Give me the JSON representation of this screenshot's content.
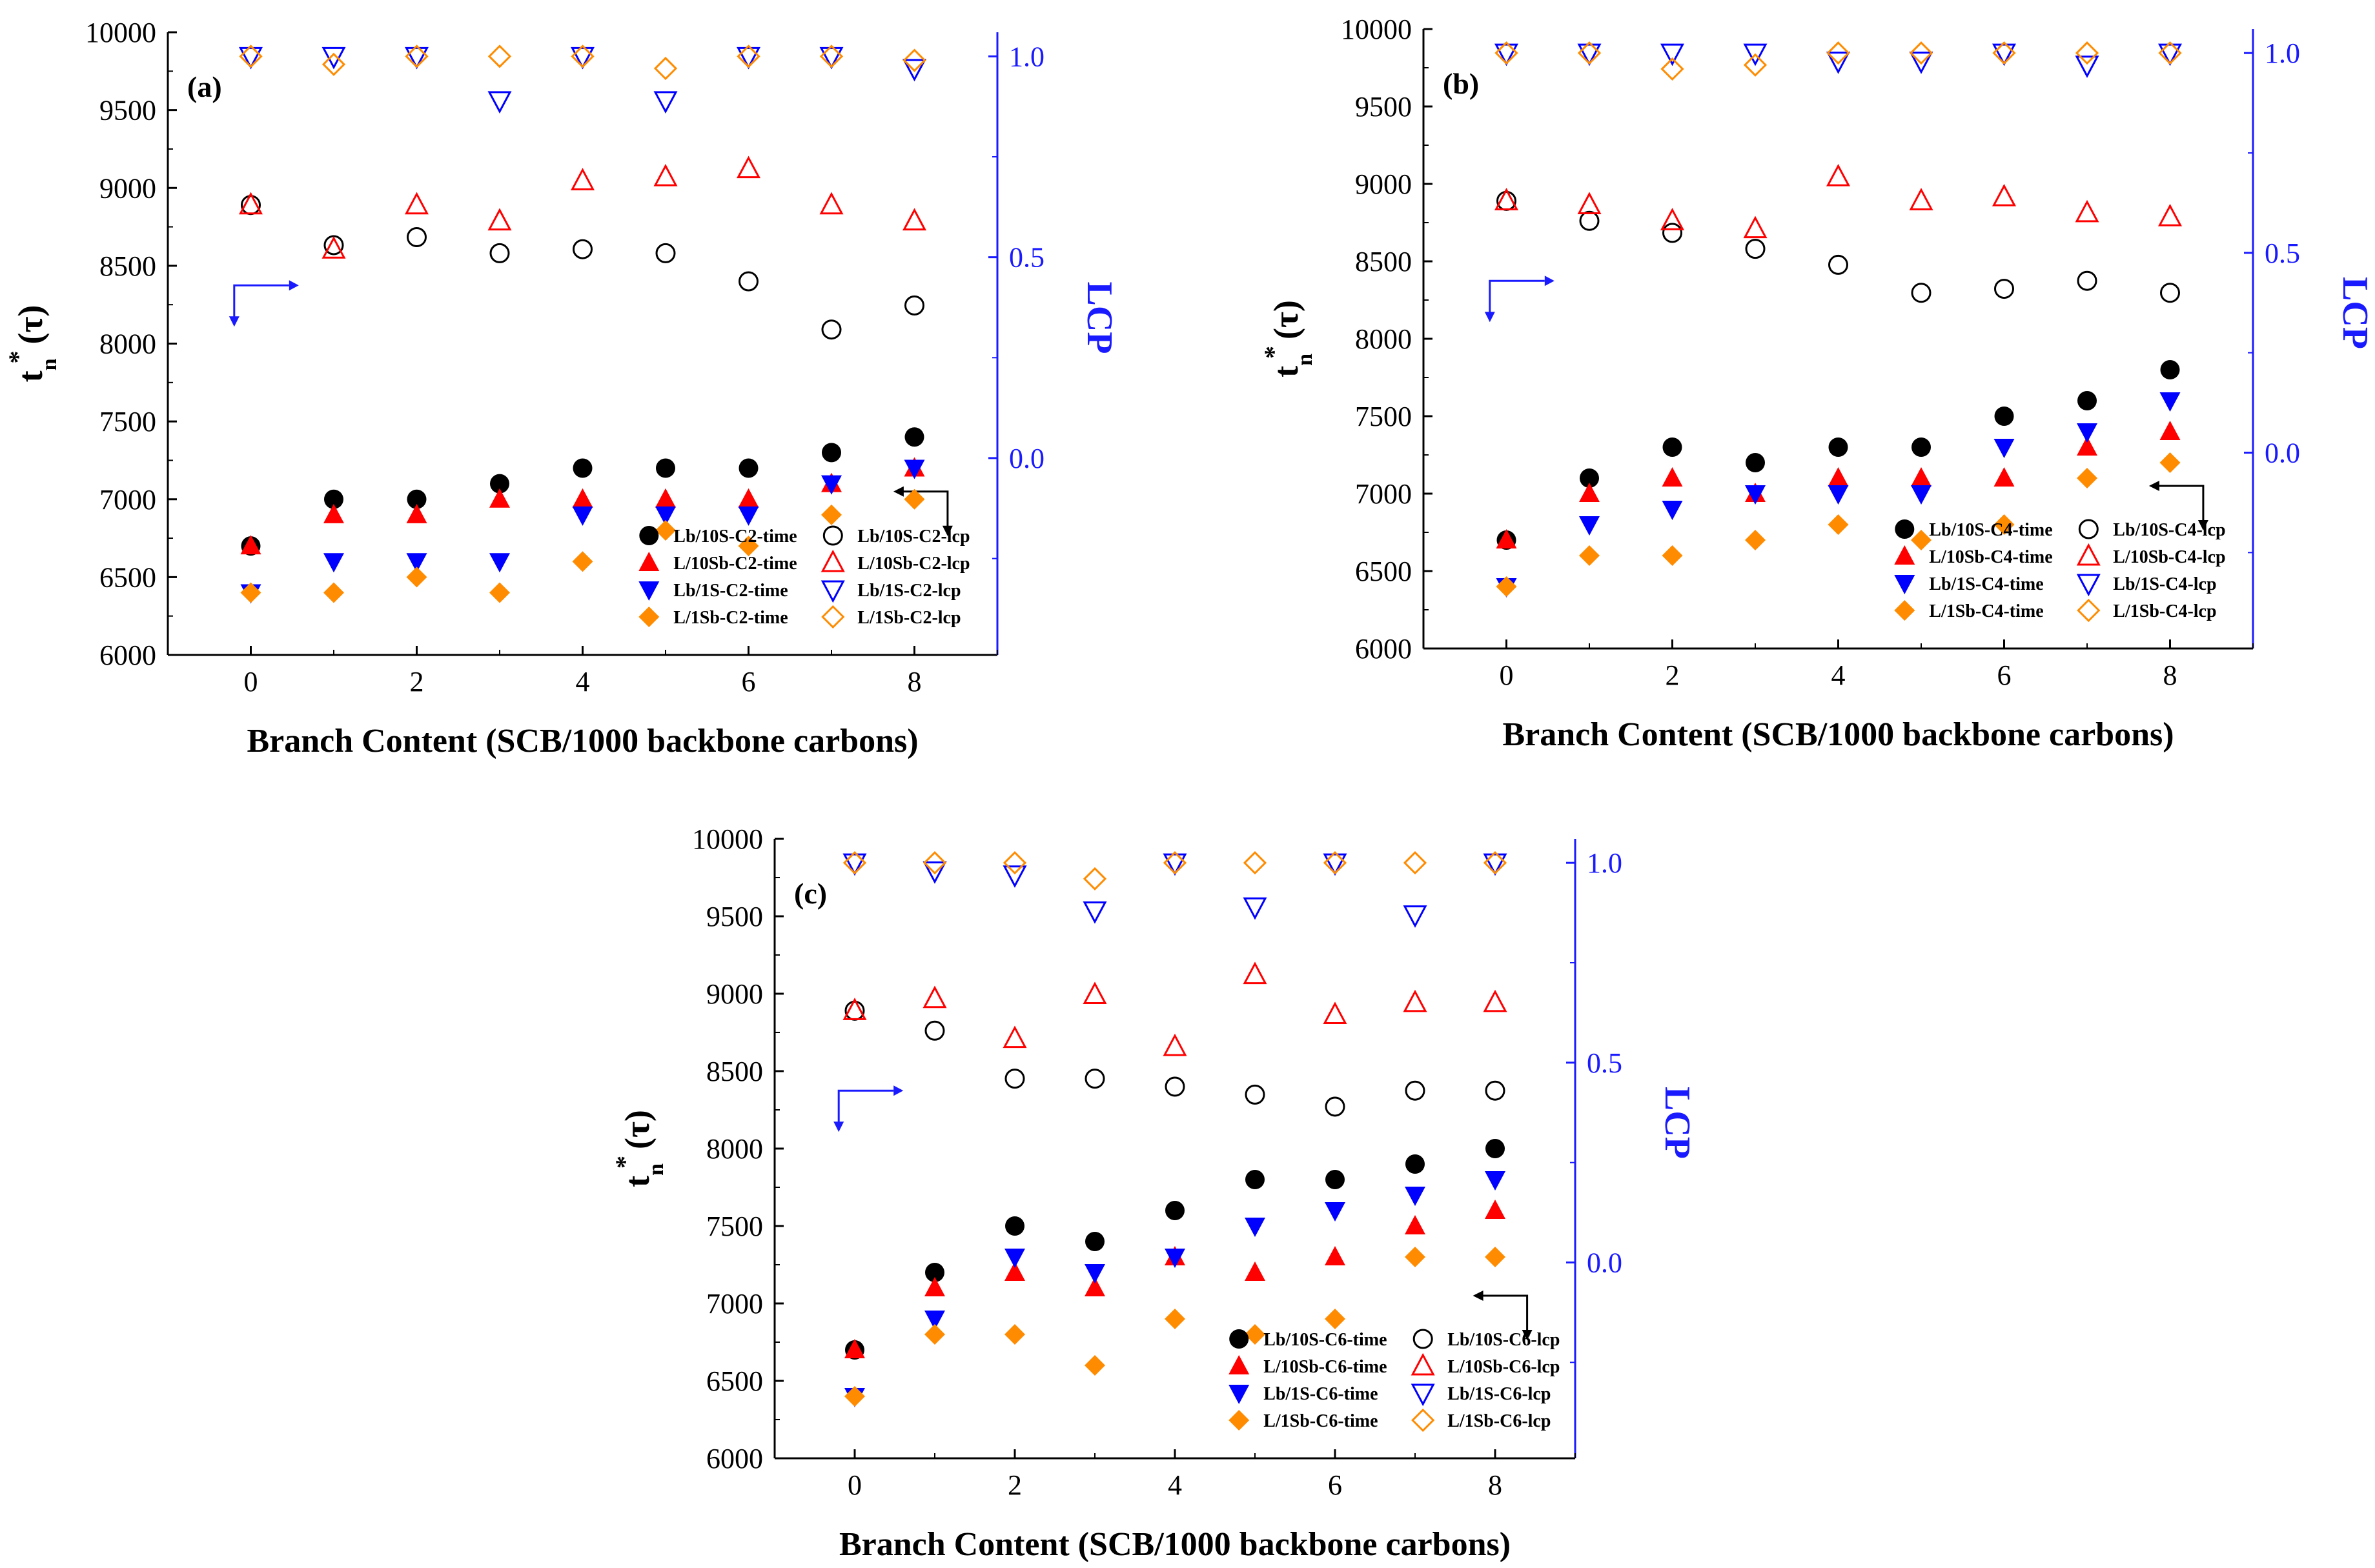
{
  "colors": {
    "time_lb10": "#000000",
    "time_l10": "#ff0000",
    "time_lb1": "#0000ff",
    "time_l1": "#ff8c00",
    "right_axis": "#1a1aff"
  },
  "chart_data": [
    {
      "type": "scatter",
      "panel": "(a)",
      "xlabel": "Branch Content (SCB/1000 backbone carbons)",
      "ylabel": "t_n*(τ)",
      "ylabel_main": "t",
      "ylabel_sup": "*",
      "ylabel_sub": "n",
      "ylabel_arg": "(τ)",
      "y2label": "LCP",
      "xlim": [
        -1,
        9
      ],
      "xticks": [
        "0",
        "2",
        "4",
        "6",
        "8"
      ],
      "ylim": [
        6000,
        10000
      ],
      "yticks": [
        "6000",
        "6500",
        "7000",
        "7500",
        "8000",
        "8500",
        "9000",
        "9500",
        "10000"
      ],
      "y2lim": [
        -0.49,
        1.06
      ],
      "y2ticks": [
        "0.0",
        "0.5",
        "1.0"
      ],
      "x": [
        0,
        1,
        2,
        3,
        4,
        5,
        6,
        7,
        8
      ],
      "series": [
        {
          "name": "Lb/10S-C2-time",
          "axis": "left",
          "marker": "circle-filled",
          "color": "time_lb10",
          "values": [
            6700,
            7000,
            7000,
            7100,
            7200,
            7200,
            7200,
            7300,
            7400
          ]
        },
        {
          "name": "L/10Sb-C2-time",
          "axis": "left",
          "marker": "triangle-up-filled",
          "color": "time_l10",
          "values": [
            6700,
            6900,
            6900,
            7000,
            7000,
            7000,
            7000,
            7100,
            7200
          ]
        },
        {
          "name": "Lb/1S-C2-time",
          "axis": "left",
          "marker": "triangle-down-filled",
          "color": "time_lb1",
          "values": [
            6400,
            6600,
            6600,
            6600,
            6900,
            6900,
            6900,
            7100,
            7200
          ]
        },
        {
          "name": "L/1Sb-C2-time",
          "axis": "left",
          "marker": "diamond-filled",
          "color": "time_l1",
          "values": [
            6400,
            6400,
            6500,
            6400,
            6600,
            6800,
            6700,
            6900,
            7000
          ]
        },
        {
          "name": "Lb/10S-C2-lcp",
          "axis": "right",
          "marker": "circle-open",
          "color": "time_lb10",
          "values": [
            0.63,
            0.53,
            0.55,
            0.51,
            0.52,
            0.51,
            0.44,
            0.32,
            0.38
          ]
        },
        {
          "name": "L/10Sb-C2-lcp",
          "axis": "right",
          "marker": "triangle-up-open",
          "color": "time_l10",
          "values": [
            0.63,
            0.52,
            0.63,
            0.59,
            0.69,
            0.7,
            0.72,
            0.63,
            0.59
          ]
        },
        {
          "name": "Lb/1S-C2-lcp",
          "axis": "right",
          "marker": "triangle-down-open",
          "color": "time_lb1",
          "values": [
            1.0,
            1.0,
            1.0,
            0.89,
            1.0,
            0.89,
            1.0,
            1.0,
            0.97
          ]
        },
        {
          "name": "L/1Sb-C2-lcp",
          "axis": "right",
          "marker": "diamond-open",
          "color": "time_l1",
          "values": [
            1.0,
            0.98,
            1.0,
            1.0,
            1.0,
            0.97,
            1.0,
            1.0,
            0.99
          ]
        }
      ],
      "legend": [
        "Lb/10S-C2-time",
        "Lb/10S-C2-lcp",
        "L/10Sb-C2-time",
        "L/10Sb-C2-lcp",
        "Lb/1S-C2-time",
        "Lb/1S-C2-lcp",
        "L/1Sb-C2-time",
        "L/1Sb-C2-lcp"
      ],
      "legend_position": "bottom-right"
    },
    {
      "type": "scatter",
      "panel": "(b)",
      "xlabel": "Branch Content (SCB/1000 backbone carbons)",
      "ylabel": "t_n*(τ)",
      "ylabel_main": "t",
      "ylabel_sup": "*",
      "ylabel_sub": "n",
      "ylabel_arg": "(τ)",
      "y2label": "LCP",
      "xlim": [
        -1,
        9
      ],
      "xticks": [
        "0",
        "2",
        "4",
        "6",
        "8"
      ],
      "ylim": [
        6000,
        10000
      ],
      "yticks": [
        "6000",
        "6500",
        "7000",
        "7500",
        "8000",
        "8500",
        "9000",
        "9500",
        "10000"
      ],
      "y2lim": [
        -0.49,
        1.06
      ],
      "y2ticks": [
        "0.0",
        "0.5",
        "1.0"
      ],
      "x": [
        0,
        1,
        2,
        3,
        4,
        5,
        6,
        7,
        8
      ],
      "series": [
        {
          "name": "Lb/10S-C4-time",
          "axis": "left",
          "marker": "circle-filled",
          "color": "time_lb10",
          "values": [
            6700,
            7100,
            7300,
            7200,
            7300,
            7300,
            7500,
            7600,
            7800
          ]
        },
        {
          "name": "L/10Sb-C4-time",
          "axis": "left",
          "marker": "triangle-up-filled",
          "color": "time_l10",
          "values": [
            6700,
            7000,
            7100,
            7000,
            7100,
            7100,
            7100,
            7300,
            7400
          ]
        },
        {
          "name": "Lb/1S-C4-time",
          "axis": "left",
          "marker": "triangle-down-filled",
          "color": "time_lb1",
          "values": [
            6400,
            6800,
            6900,
            7000,
            7000,
            7000,
            7300,
            7400,
            7600
          ]
        },
        {
          "name": "L/1Sb-C4-time",
          "axis": "left",
          "marker": "diamond-filled",
          "color": "time_l1",
          "values": [
            6400,
            6600,
            6600,
            6700,
            6800,
            6700,
            6800,
            7100,
            7200
          ]
        },
        {
          "name": "Lb/10S-C4-lcp",
          "axis": "right",
          "marker": "circle-open",
          "color": "time_lb10",
          "values": [
            0.63,
            0.58,
            0.55,
            0.51,
            0.47,
            0.4,
            0.41,
            0.43,
            0.4
          ]
        },
        {
          "name": "L/10Sb-C4-lcp",
          "axis": "right",
          "marker": "triangle-up-open",
          "color": "time_l10",
          "values": [
            0.63,
            0.62,
            0.58,
            0.56,
            0.69,
            0.63,
            0.64,
            0.6,
            0.59
          ]
        },
        {
          "name": "Lb/1S-C4-lcp",
          "axis": "right",
          "marker": "triangle-down-open",
          "color": "time_lb1",
          "values": [
            1.0,
            1.0,
            1.0,
            1.0,
            0.98,
            0.98,
            1.0,
            0.97,
            1.0
          ]
        },
        {
          "name": "L/1Sb-C4-lcp",
          "axis": "right",
          "marker": "diamond-open",
          "color": "time_l1",
          "values": [
            1.0,
            1.0,
            0.96,
            0.97,
            1.0,
            1.0,
            1.0,
            1.0,
            1.0
          ]
        }
      ],
      "legend": [
        "Lb/10S-C4-time",
        "Lb/10S-C4-lcp",
        "L/10Sb-C4-time",
        "L/10Sb-C4-lcp",
        "Lb/1S-C4-time",
        "Lb/1S-C4-lcp",
        "L/1Sb-C4-time",
        "L/1Sb-C4-lcp"
      ],
      "legend_position": "bottom-right"
    },
    {
      "type": "scatter",
      "panel": "(c)",
      "xlabel": "Branch Content (SCB/1000 backbone carbons)",
      "ylabel": "t_n*(τ)",
      "ylabel_main": "t",
      "ylabel_sup": "*",
      "ylabel_sub": "n",
      "ylabel_arg": "(τ)",
      "y2label": "LCP",
      "xlim": [
        -1,
        9
      ],
      "xticks": [
        "0",
        "2",
        "4",
        "6",
        "8"
      ],
      "ylim": [
        6000,
        10000
      ],
      "yticks": [
        "6000",
        "6500",
        "7000",
        "7500",
        "8000",
        "8500",
        "9000",
        "9500",
        "10000"
      ],
      "y2lim": [
        -0.49,
        1.06
      ],
      "y2ticks": [
        "0.0",
        "0.5",
        "1.0"
      ],
      "x": [
        0,
        1,
        2,
        3,
        4,
        5,
        6,
        7,
        8
      ],
      "series": [
        {
          "name": "Lb/10S-C6-time",
          "axis": "left",
          "marker": "circle-filled",
          "color": "time_lb10",
          "values": [
            6700,
            7200,
            7500,
            7400,
            7600,
            7800,
            7800,
            7900,
            8000
          ]
        },
        {
          "name": "L/10Sb-C6-time",
          "axis": "left",
          "marker": "triangle-up-filled",
          "color": "time_l10",
          "values": [
            6700,
            7100,
            7200,
            7100,
            7300,
            7200,
            7300,
            7500,
            7600
          ]
        },
        {
          "name": "Lb/1S-C6-time",
          "axis": "left",
          "marker": "triangle-down-filled",
          "color": "time_lb1",
          "values": [
            6400,
            6900,
            7300,
            7200,
            7300,
            7500,
            7600,
            7700,
            7800
          ]
        },
        {
          "name": "L/1Sb-C6-time",
          "axis": "left",
          "marker": "diamond-filled",
          "color": "time_l1",
          "values": [
            6400,
            6800,
            6800,
            6600,
            6900,
            6800,
            6900,
            7300,
            7300
          ]
        },
        {
          "name": "Lb/10S-C6-lcp",
          "axis": "right",
          "marker": "circle-open",
          "color": "time_lb10",
          "values": [
            0.63,
            0.58,
            0.46,
            0.46,
            0.44,
            0.42,
            0.39,
            0.43,
            0.43
          ]
        },
        {
          "name": "L/10Sb-C6-lcp",
          "axis": "right",
          "marker": "triangle-up-open",
          "color": "time_l10",
          "values": [
            0.63,
            0.66,
            0.56,
            0.67,
            0.54,
            0.72,
            0.62,
            0.65,
            0.65
          ]
        },
        {
          "name": "Lb/1S-C6-lcp",
          "axis": "right",
          "marker": "triangle-down-open",
          "color": "time_lb1",
          "values": [
            1.0,
            0.98,
            0.97,
            0.88,
            1.0,
            0.89,
            1.0,
            0.87,
            1.0
          ]
        },
        {
          "name": "L/1Sb-C6-lcp",
          "axis": "right",
          "marker": "diamond-open",
          "color": "time_l1",
          "values": [
            1.0,
            1.0,
            1.0,
            0.96,
            1.0,
            1.0,
            1.0,
            1.0,
            1.0
          ]
        }
      ],
      "legend": [
        "Lb/10S-C6-time",
        "Lb/10S-C6-lcp",
        "L/10Sb-C6-time",
        "L/10Sb-C6-lcp",
        "Lb/1S-C6-time",
        "Lb/1S-C6-lcp",
        "L/1Sb-C6-time",
        "L/1Sb-C6-lcp"
      ],
      "legend_position": "bottom-right"
    }
  ]
}
